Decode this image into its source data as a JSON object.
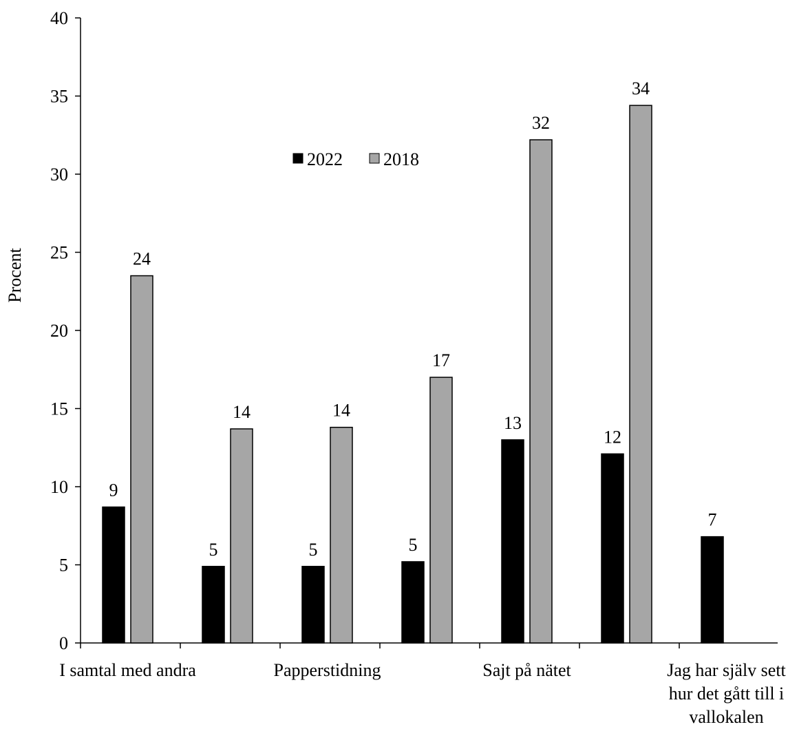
{
  "chart_data": {
    "type": "bar",
    "ylabel": "Procent",
    "ylim": [
      0,
      40
    ],
    "yticks": [
      0,
      5,
      10,
      15,
      20,
      25,
      30,
      35,
      40
    ],
    "categories": [
      "I samtal med andra",
      "",
      "Papperstidning",
      "",
      "Sajt på nätet",
      "",
      "Jag har själv sett hur det gått till i vallokalen"
    ],
    "category_lines": [
      [
        "I samtal med andra"
      ],
      [],
      [
        "Papperstidning"
      ],
      [],
      [
        "Sajt på nätet"
      ],
      [],
      [
        "Jag har själv sett",
        "hur det gått till i",
        "vallokalen"
      ]
    ],
    "series": [
      {
        "name": "2022",
        "color": "#000000",
        "values": [
          8.7,
          4.9,
          4.9,
          5.2,
          13.0,
          12.1,
          6.8
        ],
        "labels": [
          "9",
          "5",
          "5",
          "5",
          "13",
          "12",
          "7"
        ]
      },
      {
        "name": "2018",
        "color": "#a6a6a6",
        "values": [
          23.5,
          13.7,
          13.8,
          17.0,
          32.2,
          34.4,
          null
        ],
        "labels": [
          "24",
          "14",
          "14",
          "17",
          "32",
          "34",
          ""
        ]
      }
    ],
    "legend": {
      "placement": "top-center",
      "entries": [
        "2022",
        "2018"
      ]
    },
    "grid": false
  }
}
